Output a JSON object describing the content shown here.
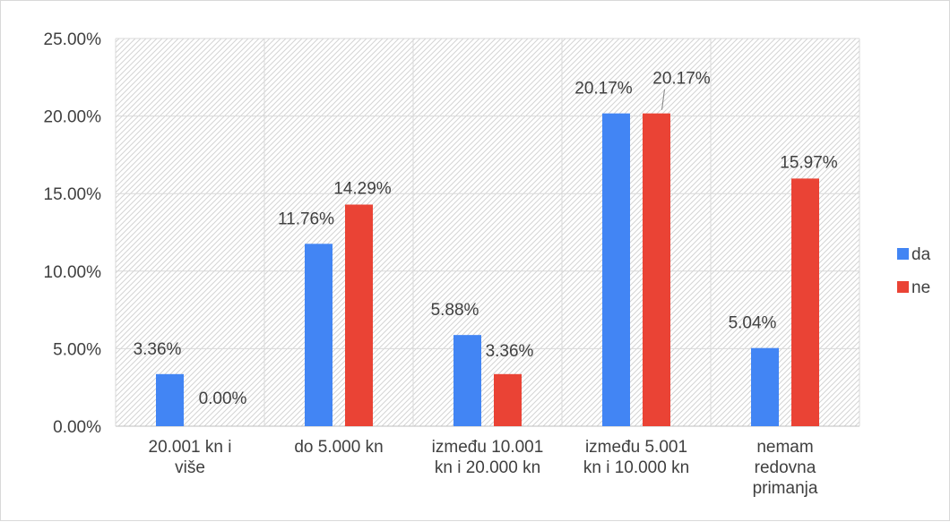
{
  "chart_data": {
    "type": "bar",
    "categories": [
      [
        "20.001 kn i",
        "više"
      ],
      [
        "do 5.000 kn"
      ],
      [
        "između 10.001",
        "kn i 20.000 kn"
      ],
      [
        "između 5.001",
        "kn i 10.000 kn"
      ],
      [
        "nemam",
        "redovna",
        "primanja"
      ]
    ],
    "series": [
      {
        "name": "da",
        "color": "#4285f4",
        "values": [
          3.36,
          11.76,
          5.88,
          20.17,
          5.04
        ],
        "labels": [
          "3.36%",
          "11.76%",
          "5.88%",
          "20.17%",
          "5.04%"
        ]
      },
      {
        "name": "ne",
        "color": "#ea4335",
        "values": [
          0.0,
          14.29,
          3.36,
          20.17,
          15.97
        ],
        "labels": [
          "0.00%",
          "14.29%",
          "3.36%",
          "20.17%",
          "15.97%"
        ]
      }
    ],
    "ylim": [
      0,
      25
    ],
    "yticks": [
      "0.00%",
      "5.00%",
      "10.00%",
      "15.00%",
      "20.00%",
      "25.00%"
    ],
    "grid": true,
    "plot_fill": "diagonal hatch",
    "legend_position": "right"
  }
}
